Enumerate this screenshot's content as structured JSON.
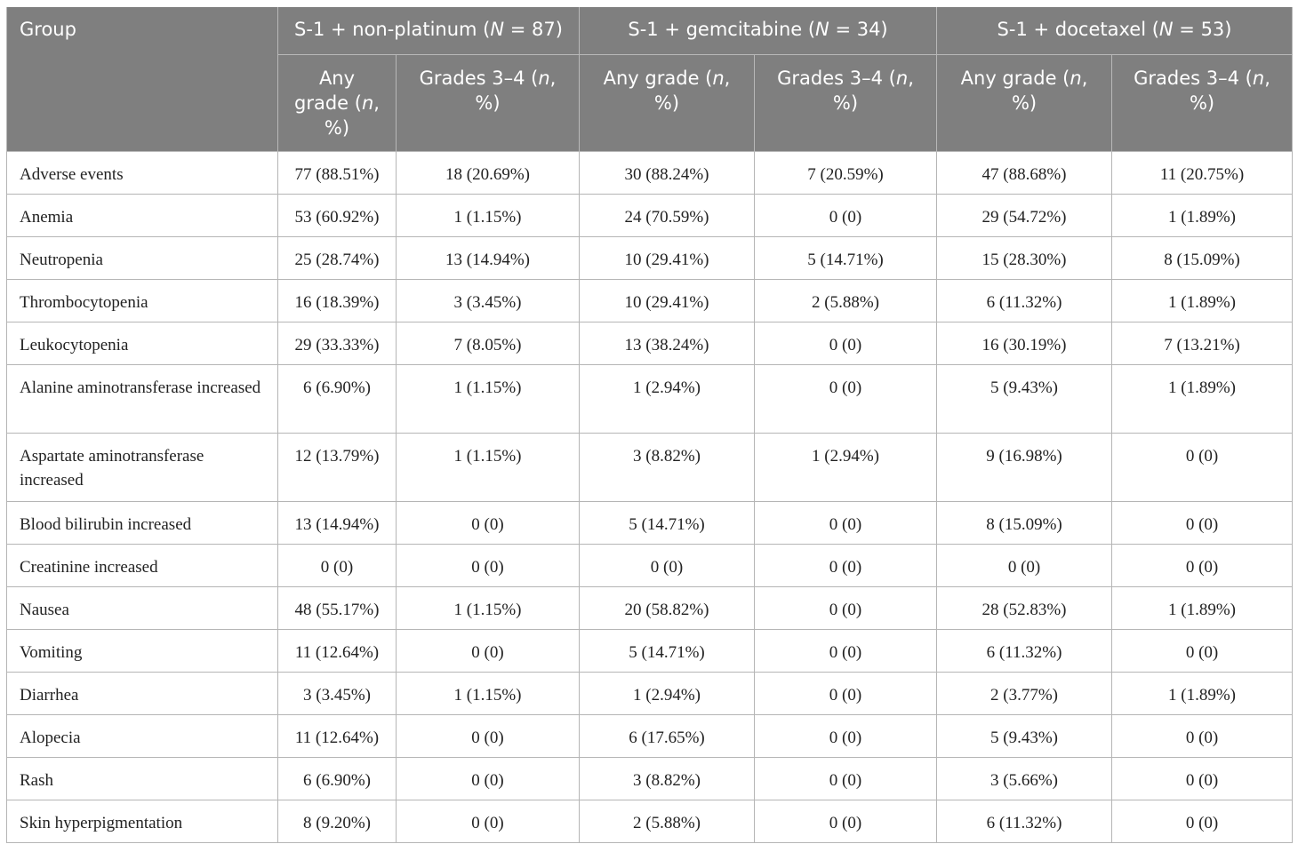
{
  "table": {
    "group_header": "Group",
    "arms": [
      {
        "name": "S-1 + non-platinum (",
        "n_italic": "N",
        "n_rest": " = 87)"
      },
      {
        "name": "S-1 + gemcitabine (",
        "n_italic": "N",
        "n_rest": " = 34)"
      },
      {
        "name": "S-1 + docetaxel (",
        "n_italic": "N",
        "n_rest": " = 53)"
      }
    ],
    "subheaders": [
      {
        "pre": "Any grade (",
        "n": "n",
        "post": ", %)"
      },
      {
        "pre": "Grades 3–4 (",
        "n": "n",
        "post": ", %)"
      },
      {
        "pre": "Any grade (",
        "n": "n",
        "post": ", %)"
      },
      {
        "pre": "Grades 3–4 (",
        "n": "n",
        "post": ", %)"
      },
      {
        "pre": "Any grade (",
        "n": "n",
        "post": ", %)"
      },
      {
        "pre": "Grades 3–4 (",
        "n": "n",
        "post": ", %)"
      }
    ],
    "rows": [
      {
        "label": "Adverse events",
        "values": [
          "77 (88.51%)",
          "18 (20.69%)",
          "30 (88.24%)",
          "7 (20.59%)",
          "47 (88.68%)",
          "11 (20.75%)"
        ]
      },
      {
        "label": "Anemia",
        "values": [
          "53 (60.92%)",
          "1 (1.15%)",
          "24 (70.59%)",
          "0 (0)",
          "29 (54.72%)",
          "1 (1.89%)"
        ]
      },
      {
        "label": "Neutropenia",
        "values": [
          "25 (28.74%)",
          "13 (14.94%)",
          "10 (29.41%)",
          "5 (14.71%)",
          "15 (28.30%)",
          "8 (15.09%)"
        ]
      },
      {
        "label": "Thrombocytopenia",
        "values": [
          "16 (18.39%)",
          "3 (3.45%)",
          "10 (29.41%)",
          "2 (5.88%)",
          "6 (11.32%)",
          "1 (1.89%)"
        ]
      },
      {
        "label": "Leukocytopenia",
        "values": [
          "29 (33.33%)",
          "7 (8.05%)",
          "13 (38.24%)",
          "0 (0)",
          "16 (30.19%)",
          "7 (13.21%)"
        ]
      },
      {
        "label": "Alanine aminotransferase increased",
        "values": [
          "6 (6.90%)",
          "1 (1.15%)",
          "1 (2.94%)",
          "0 (0)",
          "5 (9.43%)",
          "1 (1.89%)"
        ]
      },
      {
        "label": "Aspartate aminotransferase increased",
        "values": [
          "12 (13.79%)",
          "1 (1.15%)",
          "3 (8.82%)",
          "1 (2.94%)",
          "9 (16.98%)",
          "0 (0)"
        ]
      },
      {
        "label": "Blood bilirubin increased",
        "values": [
          "13 (14.94%)",
          "0 (0)",
          "5 (14.71%)",
          "0 (0)",
          "8 (15.09%)",
          "0 (0)"
        ]
      },
      {
        "label": "Creatinine increased",
        "values": [
          "0 (0)",
          "0 (0)",
          "0 (0)",
          "0 (0)",
          "0 (0)",
          "0 (0)"
        ]
      },
      {
        "label": "Nausea",
        "values": [
          "48 (55.17%)",
          "1 (1.15%)",
          "20 (58.82%)",
          "0 (0)",
          "28 (52.83%)",
          "1 (1.89%)"
        ]
      },
      {
        "label": "Vomiting",
        "values": [
          "11 (12.64%)",
          "0 (0)",
          "5 (14.71%)",
          "0 (0)",
          "6 (11.32%)",
          "0 (0)"
        ]
      },
      {
        "label": "Diarrhea",
        "values": [
          "3 (3.45%)",
          "1 (1.15%)",
          "1 (2.94%)",
          "0 (0)",
          "2 (3.77%)",
          "1 (1.89%)"
        ]
      },
      {
        "label": "Alopecia",
        "values": [
          "11 (12.64%)",
          "0 (0)",
          "6 (17.65%)",
          "0 (0)",
          "5 (9.43%)",
          "0 (0)"
        ]
      },
      {
        "label": "Rash",
        "values": [
          "6 (6.90%)",
          "0 (0)",
          "3 (8.82%)",
          "0 (0)",
          "3 (5.66%)",
          "0 (0)"
        ]
      },
      {
        "label": "Skin hyperpigmentation",
        "values": [
          "8 (9.20%)",
          "0 (0)",
          "2 (5.88%)",
          "0 (0)",
          "6 (11.32%)",
          "0 (0)"
        ]
      }
    ]
  }
}
